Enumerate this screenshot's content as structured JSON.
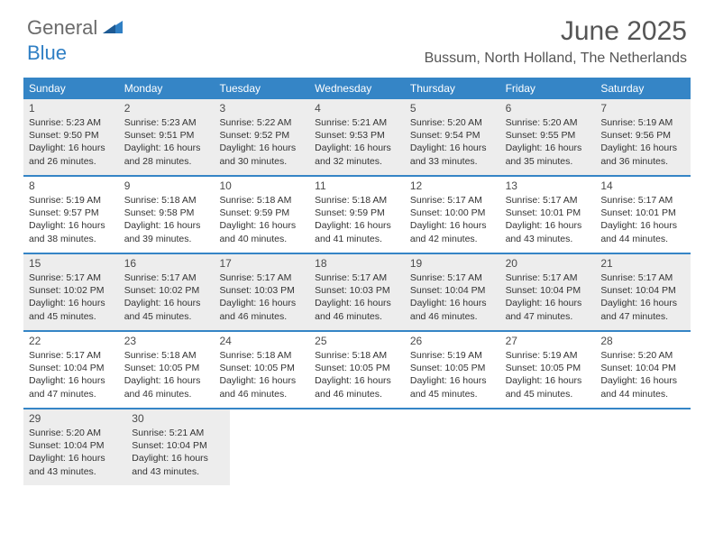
{
  "logo": {
    "text1": "General",
    "text2": "Blue"
  },
  "title": "June 2025",
  "location": "Bussum, North Holland, The Netherlands",
  "colors": {
    "header_bg": "#3585c6",
    "shaded_bg": "#ededed",
    "text": "#333333",
    "logo_gray": "#6b6b6b",
    "logo_blue": "#2f7fc4"
  },
  "weekdays": [
    "Sunday",
    "Monday",
    "Tuesday",
    "Wednesday",
    "Thursday",
    "Friday",
    "Saturday"
  ],
  "weeks": [
    {
      "shaded": true,
      "days": [
        {
          "num": "1",
          "sunrise": "5:23 AM",
          "sunset": "9:50 PM",
          "daylight": "16 hours and 26 minutes."
        },
        {
          "num": "2",
          "sunrise": "5:23 AM",
          "sunset": "9:51 PM",
          "daylight": "16 hours and 28 minutes."
        },
        {
          "num": "3",
          "sunrise": "5:22 AM",
          "sunset": "9:52 PM",
          "daylight": "16 hours and 30 minutes."
        },
        {
          "num": "4",
          "sunrise": "5:21 AM",
          "sunset": "9:53 PM",
          "daylight": "16 hours and 32 minutes."
        },
        {
          "num": "5",
          "sunrise": "5:20 AM",
          "sunset": "9:54 PM",
          "daylight": "16 hours and 33 minutes."
        },
        {
          "num": "6",
          "sunrise": "5:20 AM",
          "sunset": "9:55 PM",
          "daylight": "16 hours and 35 minutes."
        },
        {
          "num": "7",
          "sunrise": "5:19 AM",
          "sunset": "9:56 PM",
          "daylight": "16 hours and 36 minutes."
        }
      ]
    },
    {
      "shaded": false,
      "days": [
        {
          "num": "8",
          "sunrise": "5:19 AM",
          "sunset": "9:57 PM",
          "daylight": "16 hours and 38 minutes."
        },
        {
          "num": "9",
          "sunrise": "5:18 AM",
          "sunset": "9:58 PM",
          "daylight": "16 hours and 39 minutes."
        },
        {
          "num": "10",
          "sunrise": "5:18 AM",
          "sunset": "9:59 PM",
          "daylight": "16 hours and 40 minutes."
        },
        {
          "num": "11",
          "sunrise": "5:18 AM",
          "sunset": "9:59 PM",
          "daylight": "16 hours and 41 minutes."
        },
        {
          "num": "12",
          "sunrise": "5:17 AM",
          "sunset": "10:00 PM",
          "daylight": "16 hours and 42 minutes."
        },
        {
          "num": "13",
          "sunrise": "5:17 AM",
          "sunset": "10:01 PM",
          "daylight": "16 hours and 43 minutes."
        },
        {
          "num": "14",
          "sunrise": "5:17 AM",
          "sunset": "10:01 PM",
          "daylight": "16 hours and 44 minutes."
        }
      ]
    },
    {
      "shaded": true,
      "days": [
        {
          "num": "15",
          "sunrise": "5:17 AM",
          "sunset": "10:02 PM",
          "daylight": "16 hours and 45 minutes."
        },
        {
          "num": "16",
          "sunrise": "5:17 AM",
          "sunset": "10:02 PM",
          "daylight": "16 hours and 45 minutes."
        },
        {
          "num": "17",
          "sunrise": "5:17 AM",
          "sunset": "10:03 PM",
          "daylight": "16 hours and 46 minutes."
        },
        {
          "num": "18",
          "sunrise": "5:17 AM",
          "sunset": "10:03 PM",
          "daylight": "16 hours and 46 minutes."
        },
        {
          "num": "19",
          "sunrise": "5:17 AM",
          "sunset": "10:04 PM",
          "daylight": "16 hours and 46 minutes."
        },
        {
          "num": "20",
          "sunrise": "5:17 AM",
          "sunset": "10:04 PM",
          "daylight": "16 hours and 47 minutes."
        },
        {
          "num": "21",
          "sunrise": "5:17 AM",
          "sunset": "10:04 PM",
          "daylight": "16 hours and 47 minutes."
        }
      ]
    },
    {
      "shaded": false,
      "days": [
        {
          "num": "22",
          "sunrise": "5:17 AM",
          "sunset": "10:04 PM",
          "daylight": "16 hours and 47 minutes."
        },
        {
          "num": "23",
          "sunrise": "5:18 AM",
          "sunset": "10:05 PM",
          "daylight": "16 hours and 46 minutes."
        },
        {
          "num": "24",
          "sunrise": "5:18 AM",
          "sunset": "10:05 PM",
          "daylight": "16 hours and 46 minutes."
        },
        {
          "num": "25",
          "sunrise": "5:18 AM",
          "sunset": "10:05 PM",
          "daylight": "16 hours and 46 minutes."
        },
        {
          "num": "26",
          "sunrise": "5:19 AM",
          "sunset": "10:05 PM",
          "daylight": "16 hours and 45 minutes."
        },
        {
          "num": "27",
          "sunrise": "5:19 AM",
          "sunset": "10:05 PM",
          "daylight": "16 hours and 45 minutes."
        },
        {
          "num": "28",
          "sunrise": "5:20 AM",
          "sunset": "10:04 PM",
          "daylight": "16 hours and 44 minutes."
        }
      ]
    },
    {
      "shaded": true,
      "days": [
        {
          "num": "29",
          "sunrise": "5:20 AM",
          "sunset": "10:04 PM",
          "daylight": "16 hours and 43 minutes."
        },
        {
          "num": "30",
          "sunrise": "5:21 AM",
          "sunset": "10:04 PM",
          "daylight": "16 hours and 43 minutes."
        }
      ]
    }
  ],
  "labels": {
    "sunrise": "Sunrise:",
    "sunset": "Sunset:",
    "daylight": "Daylight:"
  }
}
